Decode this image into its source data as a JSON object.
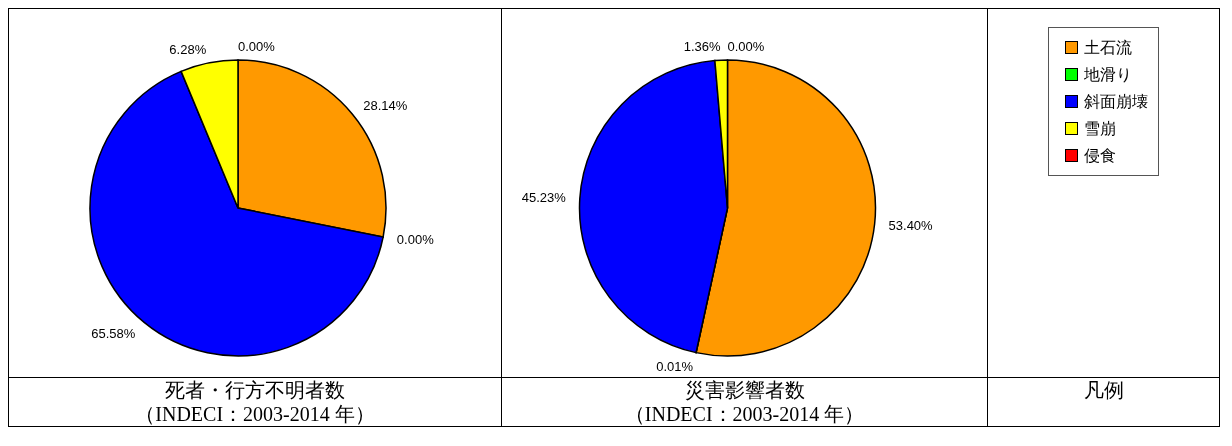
{
  "chart_data": [
    {
      "type": "pie",
      "title": "死者・行方不明者数",
      "subtitle": "（INDECI：2003-2014 年）",
      "categories": [
        "土石流",
        "地滑り",
        "斜面崩壊",
        "雪崩",
        "侵食"
      ],
      "values": [
        28.14,
        0.0,
        65.58,
        6.28,
        0.0
      ],
      "colors": [
        "#ff9900",
        "#00ff00",
        "#0000ff",
        "#ffff00",
        "#ff0000"
      ],
      "value_labels": [
        "28.14%",
        "0.00%",
        "65.58%",
        "6.28%",
        "0.00%"
      ],
      "legend": "right",
      "legend_title": "凡例"
    },
    {
      "type": "pie",
      "title": "災害影響者数",
      "subtitle": "（INDECI：2003-2014 年）",
      "categories": [
        null,
        null,
        null,
        null,
        null
      ],
      "values": [
        53.4,
        0.01,
        45.23,
        1.36,
        0.0
      ],
      "colors": [
        "#ff9900",
        "#00ff00",
        "#0000ff",
        "#ffff00",
        "#ff0000"
      ],
      "value_labels": [
        "53.40%",
        "0.01%",
        "45.23%",
        "1.36%",
        "0.00%"
      ]
    }
  ]
}
